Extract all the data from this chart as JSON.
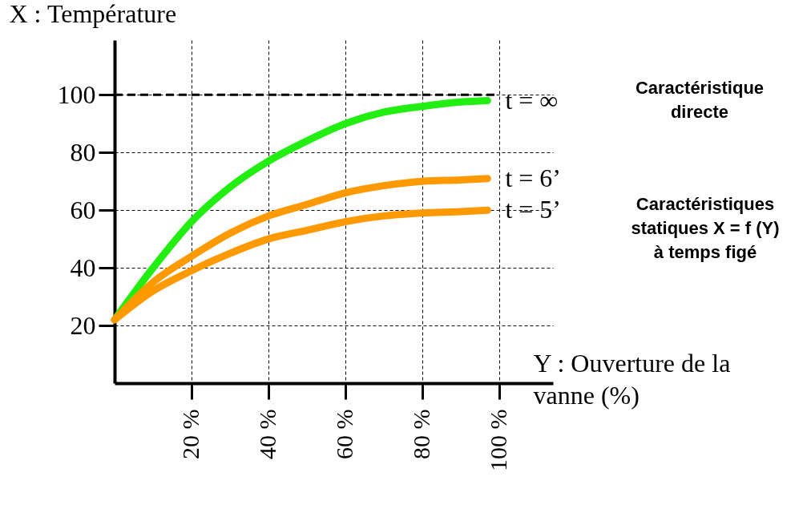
{
  "chart_data": {
    "type": "line",
    "xlabel": "Y : Ouverture de la vanne (%)",
    "ylabel": "X : Température",
    "xlim": [
      0,
      114
    ],
    "ylim": [
      0,
      119
    ],
    "xticks": [
      {
        "value": 20,
        "label": "20 %"
      },
      {
        "value": 40,
        "label": "40 %"
      },
      {
        "value": 60,
        "label": "60 %"
      },
      {
        "value": 80,
        "label": "80 %"
      },
      {
        "value": 100,
        "label": "100 %"
      }
    ],
    "yticks": [
      20,
      40,
      60,
      80,
      100
    ],
    "grid": true,
    "legend": false,
    "marker": "none",
    "line_style": "solid",
    "series": [
      {
        "name": "t = ∞",
        "color": "#22ee11",
        "x": [
          0,
          10,
          20,
          30,
          40,
          50,
          60,
          70,
          80,
          90,
          97
        ],
        "values": [
          22,
          40,
          56,
          68,
          77,
          84,
          90,
          94,
          96,
          97.5,
          98
        ]
      },
      {
        "name": "t = 6’",
        "color": "#ff9900",
        "x": [
          0,
          10,
          20,
          30,
          40,
          50,
          60,
          70,
          80,
          90,
          97
        ],
        "values": [
          22,
          35,
          44,
          52,
          58,
          62,
          66,
          68.5,
          70,
          70.5,
          71
        ]
      },
      {
        "name": "t = 5’",
        "color": "#ff9900",
        "x": [
          0,
          10,
          20,
          30,
          40,
          50,
          60,
          70,
          80,
          90,
          97
        ],
        "values": [
          22,
          32,
          39,
          45,
          50,
          53,
          56,
          58,
          59,
          59.5,
          60
        ]
      }
    ],
    "ref_lines": [
      {
        "axis": "y",
        "value": 100,
        "color": "#000000",
        "line_style": "dashed"
      }
    ],
    "annotations": [
      "Caractéristique\ndirecte",
      "Caractéristiques\nstatiques X = f (Y)\nà temps figé"
    ]
  }
}
